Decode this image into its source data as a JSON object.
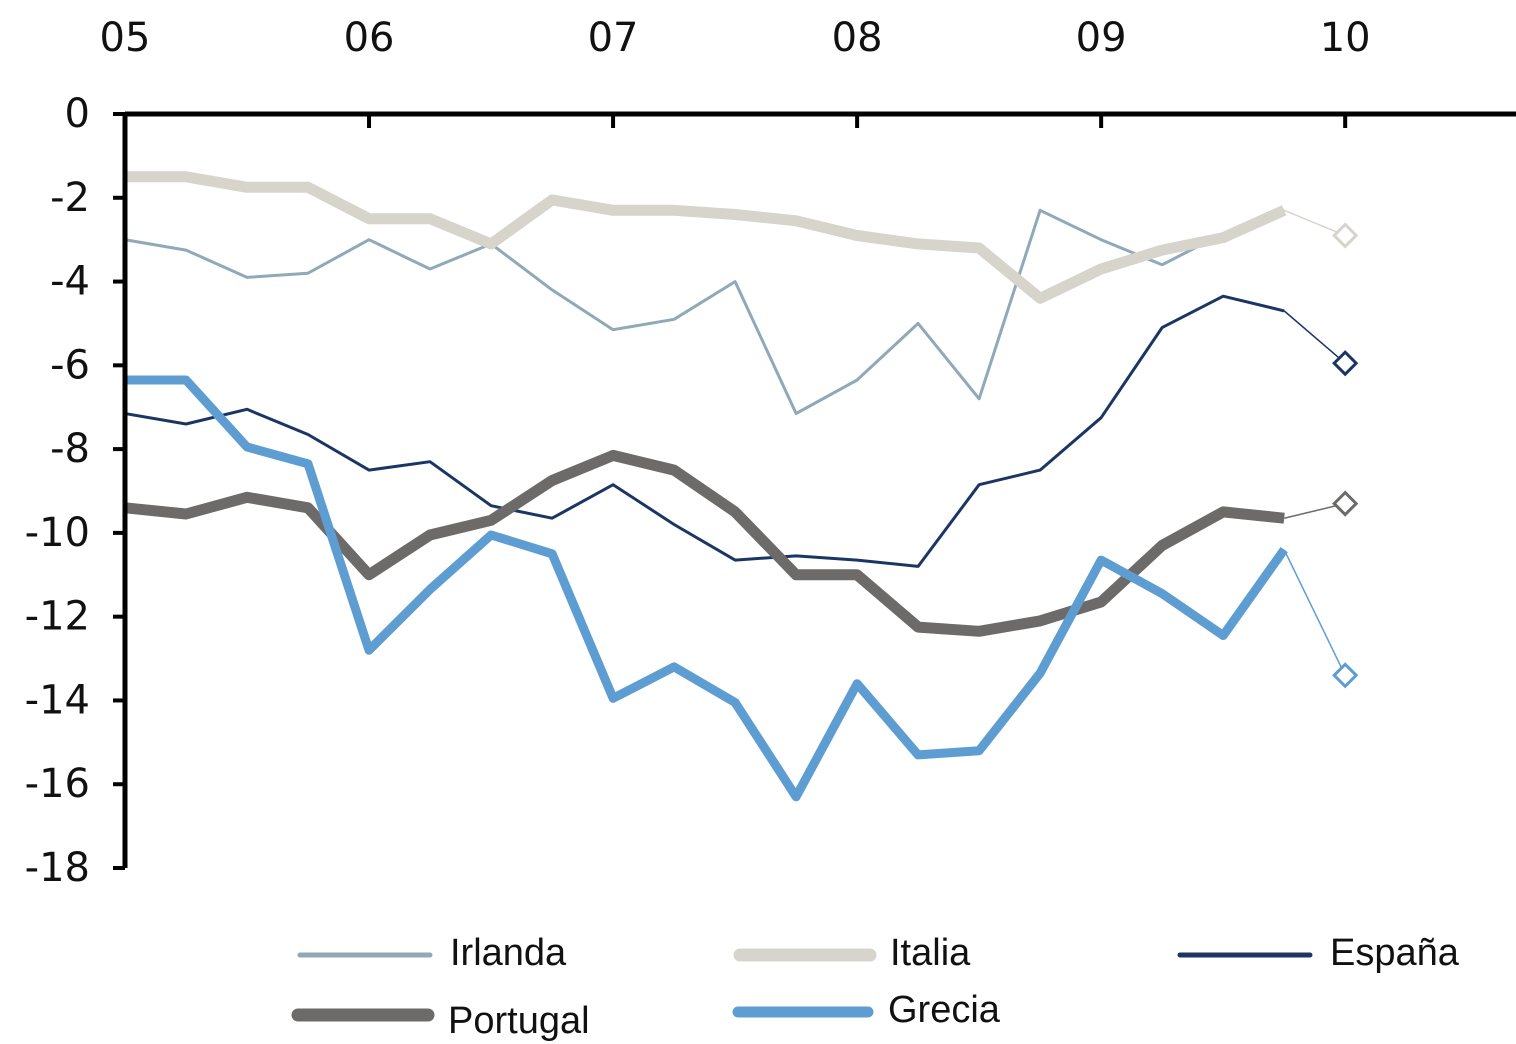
{
  "chart_data": {
    "type": "line",
    "x": [
      2005,
      2005.25,
      2005.5,
      2005.75,
      2006,
      2006.25,
      2006.5,
      2006.75,
      2007,
      2007.25,
      2007.5,
      2007.75,
      2008,
      2008.25,
      2008.5,
      2008.75,
      2009,
      2009.25,
      2009.5,
      2009.75,
      2010
    ],
    "xlim": [
      2005,
      2010.7
    ],
    "xticks": [
      {
        "value": 2005,
        "label": "05"
      },
      {
        "value": 2006,
        "label": "06"
      },
      {
        "value": 2007,
        "label": "07"
      },
      {
        "value": 2008,
        "label": "08"
      },
      {
        "value": 2009,
        "label": "09"
      },
      {
        "value": 2010,
        "label": "10"
      }
    ],
    "ylim": [
      -18,
      0
    ],
    "yticks": [
      0,
      -2,
      -4,
      -6,
      -8,
      -10,
      -12,
      -14,
      -16,
      -18
    ],
    "series": [
      {
        "name": "Irlanda",
        "color": "#8fa9b8",
        "values": [
          -3.0,
          -3.25,
          -3.9,
          -3.8,
          -3.0,
          -3.7,
          -3.1,
          -4.2,
          -5.15,
          -4.9,
          -4.0,
          -7.15,
          -6.35,
          -5.0,
          -6.8,
          -2.3,
          -3.0,
          -3.6,
          -2.85,
          -2.3,
          null
        ]
      },
      {
        "name": "Italia",
        "color": "#d7d4cc",
        "values": [
          -1.5,
          -1.5,
          -1.75,
          -1.75,
          -2.5,
          -2.5,
          -3.1,
          -2.05,
          -2.3,
          -2.3,
          -2.4,
          -2.55,
          -2.9,
          -3.1,
          -3.2,
          -4.4,
          -3.7,
          -3.25,
          -2.95,
          -2.3,
          -2.9
        ]
      },
      {
        "name": "España",
        "color": "#1b3663",
        "values": [
          -7.15,
          -7.4,
          -7.05,
          -7.65,
          -8.5,
          -8.3,
          -9.35,
          -9.65,
          -8.85,
          -9.8,
          -10.65,
          -10.55,
          -10.65,
          -10.8,
          -8.85,
          -8.5,
          -7.25,
          -5.1,
          -4.35,
          -4.7,
          -5.95
        ]
      },
      {
        "name": "Portugal",
        "color": "#6c6b6a",
        "values": [
          -9.4,
          -9.55,
          -9.15,
          -9.4,
          -11.0,
          -10.05,
          -9.7,
          -8.75,
          -8.15,
          -8.5,
          -9.5,
          -11.0,
          -11.0,
          -12.25,
          -12.35,
          -12.1,
          -11.65,
          -10.3,
          -9.5,
          -9.65,
          -9.3
        ]
      },
      {
        "name": "Grecia",
        "color": "#5e9dd2",
        "values": [
          -6.35,
          -6.35,
          -7.95,
          -8.35,
          -12.8,
          -11.35,
          -10.05,
          -10.5,
          -13.95,
          -13.2,
          -14.05,
          -16.3,
          -13.6,
          -15.3,
          -15.2,
          -13.35,
          -10.65,
          -11.45,
          -12.45,
          -10.4,
          -13.4
        ]
      }
    ]
  }
}
